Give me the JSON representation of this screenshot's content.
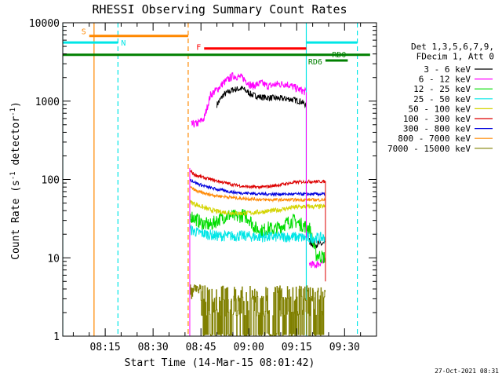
{
  "chart_data": {
    "type": "line",
    "title": "RHESSI Observing Summary Count Rates",
    "xlabel": "Start Time (14-Mar-15 08:01:42)",
    "ylabel": "Count Rate (s",
    "ylabel_sup": "-1",
    "ylabel_mid": " detector",
    "ylabel_end": ")",
    "x_ticks": [
      "08:15",
      "08:30",
      "08:45",
      "09:00",
      "09:15",
      "09:30"
    ],
    "x_tick_minutes": [
      15,
      30,
      45,
      60,
      75,
      90
    ],
    "xlim_minutes": [
      1.7,
      100
    ],
    "y_scale": "log",
    "ylim": [
      1,
      10000
    ],
    "y_ticks": [
      "1",
      "10",
      "100",
      "1000",
      "10000"
    ],
    "y_tick_values": [
      1,
      10,
      100,
      1000,
      10000
    ],
    "legend": {
      "placement": "right",
      "header": [
        "Det 1,3,5,6,7,9,",
        "FDecim 1, Att 0"
      ],
      "entries": [
        {
          "label": "3 - 6 keV",
          "color": "#000000"
        },
        {
          "label": "6 - 12 keV",
          "color": "#ff00ff"
        },
        {
          "label": "12 - 25 keV",
          "color": "#00dd00"
        },
        {
          "label": "25 - 50 keV",
          "color": "#00e6e6"
        },
        {
          "label": "50 - 100 keV",
          "color": "#d4d400"
        },
        {
          "label": "100 - 300 keV",
          "color": "#dd0000"
        },
        {
          "label": "300 - 800 keV",
          "color": "#0000dd"
        },
        {
          "label": "800 - 7000 keV",
          "color": "#ff8800"
        },
        {
          "label": "7000 - 15000 keV",
          "color": "#808000"
        }
      ]
    },
    "flag_bars": [
      {
        "label": "S",
        "color": "#ff8800",
        "y": 6800,
        "x_start": 10.0,
        "x_end": 41.0
      },
      {
        "label": "N",
        "color": "#00e6e6",
        "y": 5600,
        "x_start": 1.7,
        "x_end": 19.0
      },
      {
        "label": "",
        "color": "#00e6e6",
        "y": 5600,
        "x_start": 78.0,
        "x_end": 94.0
      },
      {
        "label": "F",
        "color": "#ff0000",
        "y": 4700,
        "x_start": 46.0,
        "x_end": 78.0
      },
      {
        "label": "",
        "color": "#008000",
        "y": 3900,
        "x_start": 1.7,
        "x_end": 98.0
      },
      {
        "label": "RD0",
        "color": "#008000",
        "y": 3300,
        "x_start": 84.0,
        "x_end": 91.0
      }
    ],
    "rd6_label": "RD6",
    "vertical_lines": [
      {
        "minute": 11.5,
        "color": "#ff8800",
        "style": "solid"
      },
      {
        "minute": 19.0,
        "color": "#00e6e6",
        "style": "dashed"
      },
      {
        "minute": 41.0,
        "color": "#ff8800",
        "style": "dashed"
      },
      {
        "minute": 78.0,
        "color": "#00e6e6",
        "style": "solid"
      },
      {
        "minute": 94.0,
        "color": "#00e6e6",
        "style": "dashed"
      },
      {
        "minute": 1.7,
        "color": "#00e6e6",
        "style": "solid"
      }
    ],
    "series": [
      {
        "name": "3 - 6 keV",
        "color": "#000000",
        "noise": 0.04,
        "x": [
          50.0,
          52,
          55,
          58,
          61,
          64,
          67,
          70,
          73,
          76,
          77.9
        ],
        "y": [
          900,
          1200,
          1400,
          1450,
          1200,
          1120,
          1100,
          1080,
          1060,
          1000,
          900
        ]
      },
      {
        "name": "3 - 6 keV (tail)",
        "color": "#000000",
        "noise": 0.05,
        "x": [
          79.0,
          80.5,
          82,
          83.9
        ],
        "y": [
          16,
          15,
          15,
          15
        ]
      },
      {
        "name": "6 - 12 keV",
        "color": "#ff00ff",
        "noise": 0.05,
        "x": [
          42.0,
          44,
          46,
          48,
          50,
          52,
          55,
          58,
          61,
          64,
          66,
          69,
          72,
          75,
          77.9
        ],
        "y": [
          500,
          520,
          600,
          1200,
          1400,
          1700,
          2100,
          2000,
          1550,
          1700,
          1550,
          1650,
          1650,
          1450,
          1300
        ]
      },
      {
        "name": "6 - 12 keV (tail)",
        "color": "#ff00ff",
        "noise": 0.05,
        "x": [
          79.0,
          80.5,
          82,
          83.9
        ],
        "y": [
          8.5,
          8,
          8.5,
          9
        ]
      },
      {
        "name": "12 - 25 keV",
        "color": "#00dd00",
        "noise": 0.09,
        "x": [
          41.5,
          43,
          45,
          48,
          50,
          52,
          54,
          56,
          58,
          60,
          62,
          64,
          66,
          68,
          70,
          72,
          74,
          76,
          77.9,
          79,
          81,
          83.9
        ],
        "y": [
          35,
          32,
          28,
          26,
          30,
          33,
          35,
          33,
          35,
          32,
          24,
          22,
          24,
          23,
          25,
          28,
          30,
          27,
          25,
          24,
          11,
          10
        ]
      },
      {
        "name": "25 - 50 keV",
        "color": "#00e6e6",
        "noise": 0.07,
        "x": [
          41.5,
          44,
          47,
          50,
          53,
          56,
          59,
          62,
          65,
          68,
          71,
          74,
          77.9,
          80,
          82,
          83.9
        ],
        "y": [
          23,
          21,
          20,
          19,
          19,
          19,
          19,
          18.5,
          18.5,
          18.5,
          18.5,
          18.5,
          18,
          18,
          18,
          18
        ]
      },
      {
        "name": "50 - 100 keV",
        "color": "#d4d400",
        "noise": 0.03,
        "x": [
          41.5,
          44,
          47,
          50,
          53,
          56,
          59,
          62,
          65,
          68,
          71,
          74,
          77,
          80,
          83.9
        ],
        "y": [
          52,
          47,
          42,
          39,
          38,
          37,
          37,
          38,
          39,
          40,
          42,
          44,
          45,
          45,
          45
        ]
      },
      {
        "name": "100 - 300 keV",
        "color": "#dd0000",
        "noise": 0.02,
        "x": [
          41.5,
          43,
          46,
          49,
          52,
          55,
          58,
          61,
          64,
          67,
          70,
          73,
          76,
          79,
          83.9
        ],
        "y": [
          130,
          115,
          105,
          98,
          92,
          86,
          82,
          80,
          80,
          82,
          86,
          90,
          93,
          94,
          94
        ]
      },
      {
        "name": "300 - 800 keV",
        "color": "#0000dd",
        "noise": 0.02,
        "x": [
          41.5,
          44,
          47,
          50,
          53,
          56,
          59,
          62,
          65,
          68,
          71,
          74,
          77,
          80,
          83.9
        ],
        "y": [
          100,
          88,
          80,
          75,
          71,
          68,
          67,
          66,
          65,
          65,
          65,
          65,
          65,
          65,
          65
        ]
      },
      {
        "name": "800 - 7000 keV",
        "color": "#ff8800",
        "noise": 0.02,
        "x": [
          41.5,
          44,
          47,
          50,
          53,
          56,
          59,
          62,
          65,
          68,
          71,
          74,
          77,
          80,
          83.9
        ],
        "y": [
          80,
          70,
          65,
          62,
          60,
          58,
          57,
          56,
          55,
          55,
          55,
          55,
          55,
          55,
          55
        ]
      }
    ],
    "series_7000": {
      "name": "7000 - 15000 keV",
      "color": "#808000",
      "x_start": 41.5,
      "x_end": 84.0,
      "base_levels": [
        1,
        2,
        3,
        4
      ],
      "typical_range": [
        1,
        4.5
      ]
    },
    "timestamp": "27-Oct-2021 08:31"
  }
}
